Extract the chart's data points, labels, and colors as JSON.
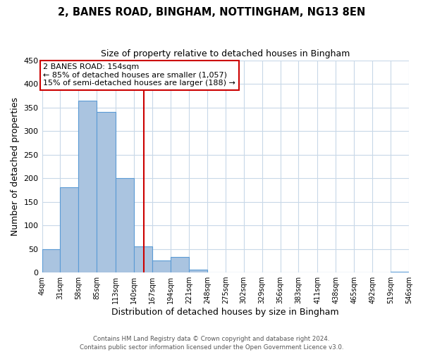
{
  "title": "2, BANES ROAD, BINGHAM, NOTTINGHAM, NG13 8EN",
  "subtitle": "Size of property relative to detached houses in Bingham",
  "xlabel": "Distribution of detached houses by size in Bingham",
  "ylabel": "Number of detached properties",
  "bar_values": [
    49,
    180,
    365,
    340,
    200,
    55,
    26,
    33,
    6,
    0,
    0,
    0,
    0,
    0,
    0,
    0,
    0,
    0,
    0,
    2
  ],
  "bin_labels": [
    "4sqm",
    "31sqm",
    "58sqm",
    "85sqm",
    "113sqm",
    "140sqm",
    "167sqm",
    "194sqm",
    "221sqm",
    "248sqm",
    "275sqm",
    "302sqm",
    "329sqm",
    "356sqm",
    "383sqm",
    "411sqm",
    "438sqm",
    "465sqm",
    "492sqm",
    "519sqm",
    "546sqm"
  ],
  "bin_edges": [
    4,
    31,
    58,
    85,
    113,
    140,
    167,
    194,
    221,
    248,
    275,
    302,
    329,
    356,
    383,
    411,
    438,
    465,
    492,
    519,
    546
  ],
  "bar_color": "#aac4e0",
  "bar_edge_color": "#5b9bd5",
  "vline_x": 154,
  "vline_color": "#cc0000",
  "ylim": [
    0,
    450
  ],
  "annotation_title": "2 BANES ROAD: 154sqm",
  "annotation_line1": "← 85% of detached houses are smaller (1,057)",
  "annotation_line2": "15% of semi-detached houses are larger (188) →",
  "annotation_box_color": "#ffffff",
  "annotation_box_edge": "#cc0000",
  "background_color": "#ffffff",
  "grid_color": "#c8d8e8",
  "footer1": "Contains HM Land Registry data © Crown copyright and database right 2024.",
  "footer2": "Contains public sector information licensed under the Open Government Licence v3.0."
}
